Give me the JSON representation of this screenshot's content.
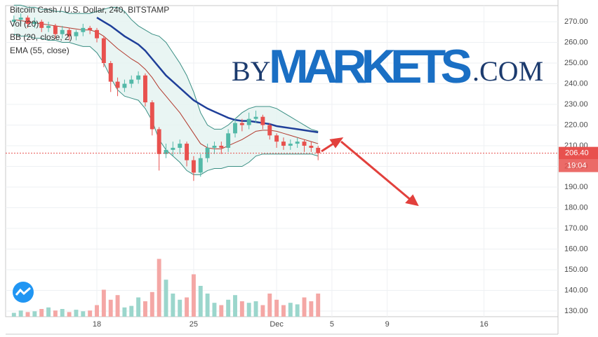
{
  "chart_data": {
    "type": "candlestick",
    "title": "Bitcoin Cash / U.S. Dollar, 240, BITSTAMP",
    "watermark": [
      "BY",
      "MARKETS",
      ".COM"
    ],
    "x": [
      12,
      12.5,
      13,
      13.5,
      14,
      14.5,
      15,
      15.5,
      16,
      16.5,
      17,
      17.5,
      18,
      18.5,
      19,
      19.5,
      20,
      20.5,
      21,
      21.5,
      22,
      22.5,
      23,
      23.5,
      24,
      24.5,
      25,
      25.5,
      26,
      26.5,
      27,
      27.5,
      28,
      28.5,
      29,
      29.5,
      30,
      30.5,
      31,
      31.5,
      32,
      32.5,
      33,
      33.5,
      34
    ],
    "open": [
      270,
      271,
      272,
      269,
      270,
      267,
      268,
      264,
      266,
      263,
      265,
      267,
      266,
      262,
      250,
      241,
      238,
      240,
      242,
      244,
      231,
      218,
      206,
      208,
      209,
      211,
      203,
      197,
      204,
      209,
      210,
      209,
      216,
      221,
      220,
      223,
      224,
      220,
      215,
      212,
      210,
      211,
      212,
      210,
      209
    ],
    "high": [
      273,
      274,
      273,
      272,
      271,
      270,
      269,
      268,
      267,
      266,
      269,
      268,
      267,
      263,
      251,
      243,
      242,
      244,
      246,
      245,
      232,
      219,
      211,
      212,
      213,
      212,
      205,
      206,
      211,
      212,
      212,
      218,
      223,
      223,
      226,
      227,
      225,
      221,
      216,
      214,
      213,
      214,
      213,
      212,
      210
    ],
    "low": [
      268,
      269,
      267,
      267,
      265,
      265,
      262,
      262,
      261,
      261,
      263,
      264,
      260,
      248,
      236,
      234,
      236,
      238,
      240,
      229,
      215,
      198,
      204,
      205,
      206,
      200,
      193,
      195,
      202,
      206,
      206,
      207,
      214,
      217,
      218,
      221,
      218,
      213,
      209,
      208,
      208,
      209,
      207,
      207,
      203
    ],
    "close": [
      271,
      272,
      269,
      270,
      267,
      268,
      264,
      266,
      263,
      265,
      267,
      266,
      262,
      250,
      241,
      238,
      240,
      242,
      244,
      231,
      218,
      206,
      208,
      209,
      211,
      203,
      197,
      204,
      209,
      210,
      209,
      216,
      221,
      220,
      223,
      224,
      220,
      215,
      212,
      210,
      211,
      212,
      210,
      209,
      206.4
    ],
    "indicators": [
      {
        "name": "Vol (20)",
        "values": [
          5,
          8,
          6,
          7,
          10,
          12,
          8,
          10,
          6,
          9,
          7,
          8,
          15,
          35,
          22,
          28,
          12,
          14,
          25,
          20,
          32,
          75,
          48,
          30,
          22,
          25,
          55,
          40,
          30,
          18,
          15,
          22,
          28,
          20,
          18,
          20,
          15,
          30,
          22,
          15,
          18,
          16,
          25,
          20,
          30
        ],
        "up_color": "#9bd6cc",
        "down_color": "#f4a7a5"
      },
      {
        "name": "BB (20, close, 2)",
        "upper": [
          278,
          278,
          277,
          277,
          276,
          276,
          275,
          275,
          274,
          274,
          274,
          274,
          275,
          276,
          277,
          277,
          275,
          271,
          268,
          266,
          264,
          263,
          260,
          255,
          250,
          244,
          236,
          226,
          220,
          218,
          218,
          220,
          223,
          226,
          228,
          229,
          229,
          229,
          228,
          226,
          224,
          222,
          220,
          218,
          217
        ],
        "basis": [
          271,
          270.5,
          270,
          269.5,
          269,
          268.5,
          268,
          267.5,
          267,
          266.5,
          266,
          266,
          265,
          263,
          260,
          257,
          254.5,
          252,
          250,
          247,
          243,
          238,
          234,
          230,
          226,
          221,
          216,
          211,
          209,
          208.5,
          208.5,
          210,
          211.5,
          213,
          215,
          217,
          217.5,
          217.5,
          217,
          216,
          215,
          214,
          213,
          212,
          211
        ],
        "lower": [
          264,
          263,
          263,
          262,
          262,
          261,
          261,
          260,
          260,
          259,
          258,
          258,
          255,
          250,
          243,
          237,
          234,
          233,
          232,
          228,
          222,
          213,
          208,
          205,
          202,
          198,
          196,
          196,
          198,
          199,
          199,
          200,
          200,
          200,
          202,
          205,
          206,
          206,
          206,
          206,
          206,
          206,
          206,
          206,
          205
        ],
        "band_color": "#3a8f84",
        "basis_color": "#b23a2e",
        "fill": "#e4f3f0"
      },
      {
        "name": "EMA (55, close)",
        "values": [
          null,
          null,
          null,
          null,
          null,
          null,
          null,
          null,
          null,
          null,
          null,
          null,
          272,
          270,
          268,
          265.5,
          263,
          261,
          259,
          256,
          252,
          248,
          244,
          241,
          238,
          235,
          232,
          230,
          228,
          226.5,
          225,
          223.5,
          222.5,
          222,
          222,
          221.5,
          221,
          220.5,
          219.5,
          219,
          218.5,
          218,
          217.5,
          217,
          216.5
        ],
        "color": "#1f3f99"
      }
    ],
    "up_color": "#53b9a8",
    "down_color": "#e8514e",
    "last_price": {
      "value": 206.4,
      "label": "206.40"
    },
    "countdown": "19:04",
    "xlim": [
      11.4,
      51.35
    ],
    "xticks": [
      18,
      25,
      {
        "value": 31,
        "label": "Dec"
      },
      {
        "value": 35,
        "label": "5"
      },
      {
        "value": 39,
        "label": "9"
      },
      {
        "value": 46,
        "label": "16"
      }
    ],
    "ylim": [
      127.3,
      277.8
    ],
    "yticks": [
      {
        "value": 130,
        "label": "130.00"
      },
      {
        "value": 140,
        "label": "140.00"
      },
      {
        "value": 150,
        "label": "150.00"
      },
      {
        "value": 160,
        "label": "160.00"
      },
      {
        "value": 170,
        "label": "170.00"
      },
      {
        "value": 180,
        "label": "180.00"
      },
      {
        "value": 190,
        "label": "190.00"
      },
      {
        "value": 200,
        "label": "200.00"
      },
      {
        "value": 210,
        "label": "210.00"
      },
      {
        "value": 220,
        "label": "220.00"
      },
      {
        "value": 230,
        "label": "230.00"
      },
      {
        "value": 240,
        "label": "240.00"
      },
      {
        "value": 250,
        "label": "250.00"
      },
      {
        "value": 260,
        "label": "260.00"
      },
      {
        "value": 270,
        "label": "270.00"
      }
    ],
    "volume_lim": [
      0,
      100
    ],
    "grid": true
  }
}
